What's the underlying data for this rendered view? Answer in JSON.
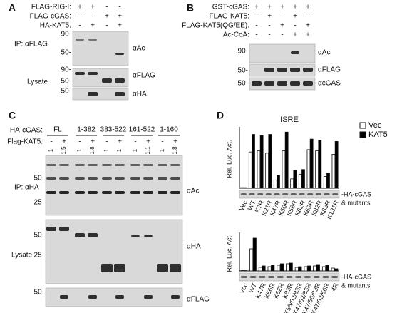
{
  "panel_a": {
    "letter": "A",
    "rows": [
      {
        "label": "FLAG-RIG-I:",
        "signs": [
          "+",
          "+",
          "-",
          "-"
        ]
      },
      {
        "label": "FLAG-cGAS:",
        "signs": [
          "-",
          "-",
          "+",
          "+"
        ]
      },
      {
        "label": "HA-KAT5:",
        "signs": [
          "-",
          "+",
          "-",
          "+"
        ]
      }
    ],
    "ip_label": "IP: αFLAG",
    "lysate_label": "Lysate",
    "markers": [
      "90-",
      "50-",
      "90-",
      "50-",
      "50-"
    ],
    "blots": [
      "αAc",
      "αFLAG",
      "αHA"
    ]
  },
  "panel_b": {
    "letter": "B",
    "rows": [
      {
        "label": "GST-cGAS:",
        "signs": [
          "+",
          "+",
          "+",
          "+",
          "+"
        ]
      },
      {
        "label": "FLAG-KAT5:",
        "signs": [
          "-",
          "+",
          "-",
          "+",
          "-"
        ]
      },
      {
        "label": "FLAG-KAT5(QG/EE):",
        "signs": [
          "-",
          "-",
          "+",
          "-",
          "+"
        ]
      },
      {
        "label": "Ac-CoA:",
        "signs": [
          "-",
          "-",
          "-",
          "+",
          "+"
        ]
      }
    ],
    "markers": [
      "90-",
      "50-",
      "50-"
    ],
    "blots": [
      "αAc",
      "αFLAG",
      "αcGAS"
    ]
  },
  "panel_c": {
    "letter": "C",
    "row_label": "HA-cGAS:",
    "groups": [
      "FL",
      "1-382",
      "383-522",
      "161-522",
      "1-160"
    ],
    "kat5_label": "Flag-KAT5:",
    "kat5_signs": [
      "-",
      "+",
      "-",
      "+",
      "-",
      "+",
      "-",
      "+",
      "-",
      "+"
    ],
    "ratios": [
      1,
      1.5,
      1,
      1.8,
      1,
      1,
      1,
      1.1,
      1,
      1.8
    ],
    "ip_label": "IP: αHA",
    "lysate_label": "Lysate",
    "markers": [
      "50-",
      "25-",
      "50-",
      "25-",
      "50-"
    ],
    "blots": [
      "αAc",
      "αHA",
      "αFLAG"
    ]
  },
  "panel_d": {
    "letter": "D"
  },
  "chart_data": [
    {
      "type": "bar",
      "title": "ISRE",
      "y_label": "Rel. Luc. Act.",
      "annotation": [
        "-HA-cGAS",
        "& mutants"
      ],
      "categories": [
        "Vec",
        "WT",
        "K7R",
        "K21R",
        "K47R",
        "K50R",
        "K56R",
        "K62R",
        "K63R",
        "K82R",
        "K83R",
        "K131R"
      ],
      "series": [
        {
          "name": "Vec",
          "color": "#ffffff",
          "values": [
            5,
            310,
            320,
            300,
            70,
            320,
            80,
            120,
            330,
            320,
            100,
            290
          ]
        },
        {
          "name": "KAT5",
          "color": "#000000",
          "values": [
            5,
            460,
            450,
            460,
            110,
            480,
            150,
            160,
            420,
            410,
            130,
            400
          ]
        }
      ],
      "ylim": [
        0,
        500
      ]
    },
    {
      "type": "bar",
      "y_label": "Rel. Luc. Act.",
      "annotation": [
        "-HA-cGAS",
        "& mutants"
      ],
      "categories": [
        "Vec",
        "WT",
        "K47R",
        "K56R",
        "K62R",
        "K83R",
        "K56/62/83R",
        "K47/62/83R",
        "K47/56/83R",
        "K47/62/56R",
        "4R"
      ],
      "series": [
        {
          "color": "#ffffff",
          "values": [
            5,
            310,
            50,
            60,
            80,
            100,
            50,
            60,
            70,
            60,
            40
          ]
        },
        {
          "color": "#000000",
          "values": [
            5,
            460,
            70,
            80,
            100,
            110,
            60,
            70,
            90,
            80,
            30
          ]
        }
      ],
      "ylim": [
        0,
        500
      ]
    }
  ]
}
